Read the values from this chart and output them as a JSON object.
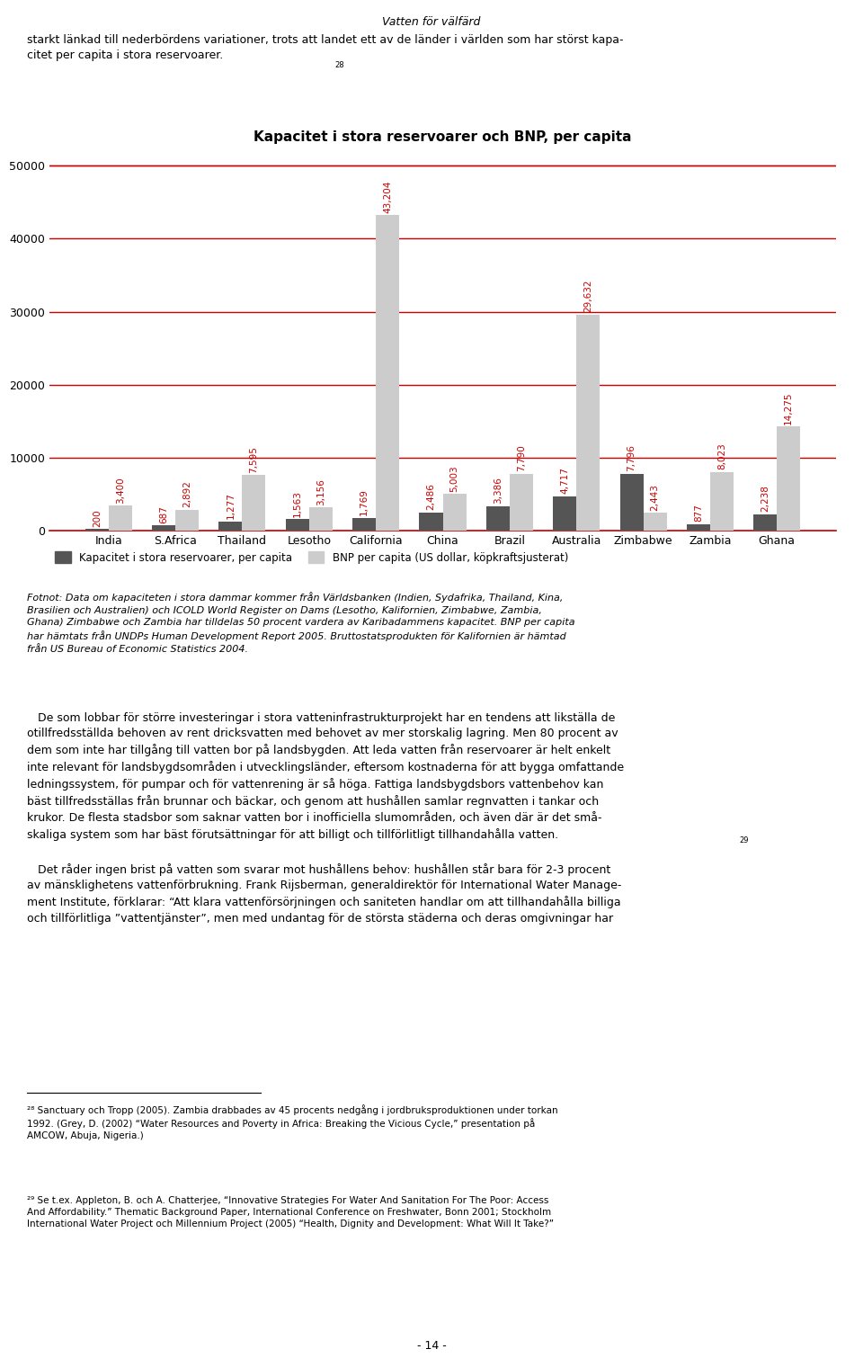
{
  "title": "Kapacitet i stora reservoarer och BNP, per capita",
  "categories": [
    "India",
    "S.Africa",
    "Thailand",
    "Lesotho",
    "California",
    "China",
    "Brazil",
    "Australia",
    "Zimbabwe",
    "Zambia",
    "Ghana"
  ],
  "capacity": [
    200,
    687,
    1277,
    1563,
    1769,
    2486,
    3386,
    4717,
    7796,
    877,
    2238
  ],
  "bnp": [
    3400,
    2892,
    7595,
    3156,
    43204,
    5003,
    7790,
    29632,
    2443,
    8023,
    14275
  ],
  "capacity_color": "#555555",
  "bnp_color": "#cccccc",
  "grid_color": "#cc0000",
  "label_color": "#cc0000",
  "ylim": [
    0,
    52000
  ],
  "yticks": [
    0,
    10000,
    20000,
    30000,
    40000,
    50000
  ],
  "legend_label_capacity": "Kapacitet i stora reservoarer, per capita",
  "legend_label_bnp": "BNP per capita (US dollar, köpkraftsjusterat)",
  "capacity_labels": [
    "200",
    "687",
    "1,277",
    "1,563",
    "1,769",
    "2,486",
    "3,386",
    "4,717",
    "7,796",
    "877",
    "2,238"
  ],
  "bnp_labels": [
    "3,400",
    "2,892",
    "7,595",
    "3,156",
    "43,204",
    "5,003",
    "7,790",
    "29,632",
    "2,443",
    "8,023",
    "14,275"
  ],
  "page_header": "Vatten för välfärd",
  "intro_text": "starkt länkad till nederbördens variationer, trots att landet ett av de länder i världen som har störst kapa-\ncitet per capita i stora reservoarer.",
  "footnote_text": "Fotnot: Data om kapaciteten i stora dammar kommer från Världsbanken (Indien, Sydafrika, Thailand, Kina,\nBrasilien och Australien) och ICOLD World Register on Dams (Lesotho, Kalifornien, Zimbabwe, Zambia,\nGhana) Zimbabwe och Zambia har tilldelas 50 procent vardera av Karibadammens kapacitet. BNP per capita\nhar hämtats från UNDPs Human Development Report 2005. Bruttostatsprodukten för Kalifornien är hämtad\nfrån US Bureau of Economic Statistics 2004.",
  "body1": "   De som lobbar för större investeringar i stora vatteninfrastrukturprojekt har en tendens att likställa de\notillfredsställda behoven av rent dricksvatten med behovet av mer storskalig lagring. Men 80 procent av\ndem som inte har tillgång till vatten bor på landsbygden. Att leda vatten från reservoarer är helt enkelt\ninte relevant för landsbygdsområden i utvecklingsländer, eftersom kostnaderna för att bygga omfattande\nledningssystem, för pumpar och för vattenrening är så höga. Fattiga landsbygdsbors vattenbehov kan\nbäst tillfredsställas från brunnar och bäckar, och genom att hushållen samlar regnvatten i tankar och\nkrukor. De flesta stadsbor som saknar vatten bor i inofficiella slumområden, och även där är det små-\nskaliga system som har bäst förutsättningar för att billigt och tillförlitligt tillhandahålla vatten.",
  "body2": "   Det råder ingen brist på vatten som svarar mot hushållens behov: hushållen står bara för 2-3 procent\nav mänsklighetens vattenförbrukning. Frank Rijsberman, generaldirektör för International Water Manage-\nment Institute, förklarar: “Att klara vattenförsörjningen och saniteten handlar om att tillhandahålla billiga\noch tillförlitliga ”vattentjänster”, men med undantag för de största städerna och deras omgivningar har",
  "fn1": "²⁸ Sanctuary och Tropp (2005). Zambia drabbades av 45 procents nedgång i jordbruksproduktionen under torkan\n1992. (Grey, D. (2002) “Water Resources and Poverty in Africa: Breaking the Vicious Cycle,” presentation på\nAMCOW, Abuja, Nigeria.)",
  "fn2": "²⁹ Se t.ex. Appleton, B. och A. Chatterjee, “Innovative Strategies For Water And Sanitation For The Poor: Access\nAnd Affordability.” Thematic Background Paper, International Conference on Freshwater, Bonn 2001; Stockholm\nInternational Water Project och Millennium Project (2005) “Health, Dignity and Development: What Will It Take?”",
  "page_number": "- 14 -"
}
